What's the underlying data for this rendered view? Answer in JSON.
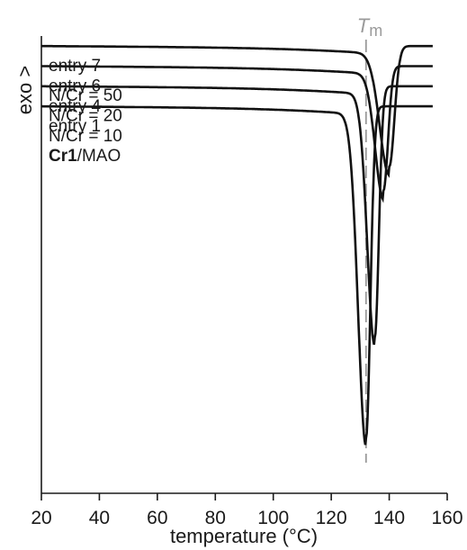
{
  "chart_data": {
    "type": "line",
    "xlabel": "temperature (°C)",
    "ylabel": "exo >",
    "xlim": [
      20,
      160
    ],
    "x_ticks": [
      "20",
      "40",
      "60",
      "80",
      "100",
      "120",
      "140",
      "160"
    ],
    "grid": false,
    "y_ticks": "none",
    "reference_line": {
      "x": 132,
      "label_italic": "T",
      "label_sub": "m",
      "style": "dashed",
      "color": "#9a9a9a"
    },
    "series": [
      {
        "label_line1": "entry 7",
        "label_line2": "N/Cr = 50",
        "baseline": 50,
        "peak_x": 140,
        "peak_depth": 60,
        "peak_width": 4.6
      },
      {
        "label_line1": "entry 6",
        "label_line2": "N/Cr = 20",
        "baseline": 40,
        "peak_x": 138,
        "peak_depth": 62,
        "peak_width": 4.0
      },
      {
        "label_line1": "entry 4",
        "label_line2": "N/Cr = 10",
        "baseline": 30,
        "peak_x": 135,
        "peak_depth": 125,
        "peak_width": 3.6
      },
      {
        "label_bold": "Cr1",
        "label_rest": "/MAO",
        "label_line1": "entry 1",
        "baseline": 20,
        "peak_x": 132,
        "peak_depth": 165,
        "peak_width": 3.8
      }
    ]
  }
}
